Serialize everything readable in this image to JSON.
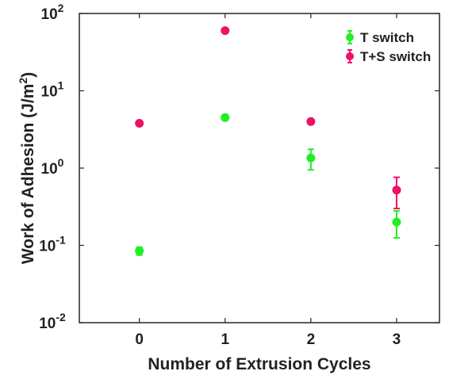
{
  "chart_data": {
    "type": "scatter",
    "xlabel": "Number of Extrusion Cycles",
    "ylabel": "Work of Adhesion (J/m",
    "ylabel_sup": "2",
    "ylabel_tail": ")",
    "xlim": [
      -0.7,
      3.5
    ],
    "ylim": [
      0.01,
      100
    ],
    "y_scale": "log",
    "x_ticks": [
      "0",
      "1",
      "2",
      "3"
    ],
    "x_tick_values": [
      0,
      1,
      2,
      3
    ],
    "y_ticks": [
      {
        "base": "10",
        "exp": "-2",
        "value": 0.01
      },
      {
        "base": "10",
        "exp": "-1",
        "value": 0.1
      },
      {
        "base": "10",
        "exp": "0",
        "value": 1
      },
      {
        "base": "10",
        "exp": "1",
        "value": 10
      },
      {
        "base": "10",
        "exp": "2",
        "value": 100
      }
    ],
    "legend_position": "top-right",
    "grid": false,
    "series": [
      {
        "name": "T switch",
        "color": "#22ee22",
        "points": [
          {
            "x": 0,
            "y": 0.085,
            "low": 0.075,
            "high": 0.095
          },
          {
            "x": 1,
            "y": 4.5,
            "low": 4.2,
            "high": 4.8
          },
          {
            "x": 2,
            "y": 1.35,
            "low": 0.95,
            "high": 1.75
          },
          {
            "x": 3,
            "y": 0.2,
            "low": 0.125,
            "high": 0.28
          }
        ]
      },
      {
        "name": "T+S switch",
        "color": "#ee1166",
        "points": [
          {
            "x": 0,
            "y": 3.8,
            "low": 3.6,
            "high": 4.0
          },
          {
            "x": 1,
            "y": 60,
            "low": 57,
            "high": 63
          },
          {
            "x": 2,
            "y": 4.0,
            "low": 3.8,
            "high": 4.2
          },
          {
            "x": 3,
            "y": 0.52,
            "low": 0.3,
            "high": 0.76
          }
        ]
      }
    ]
  }
}
